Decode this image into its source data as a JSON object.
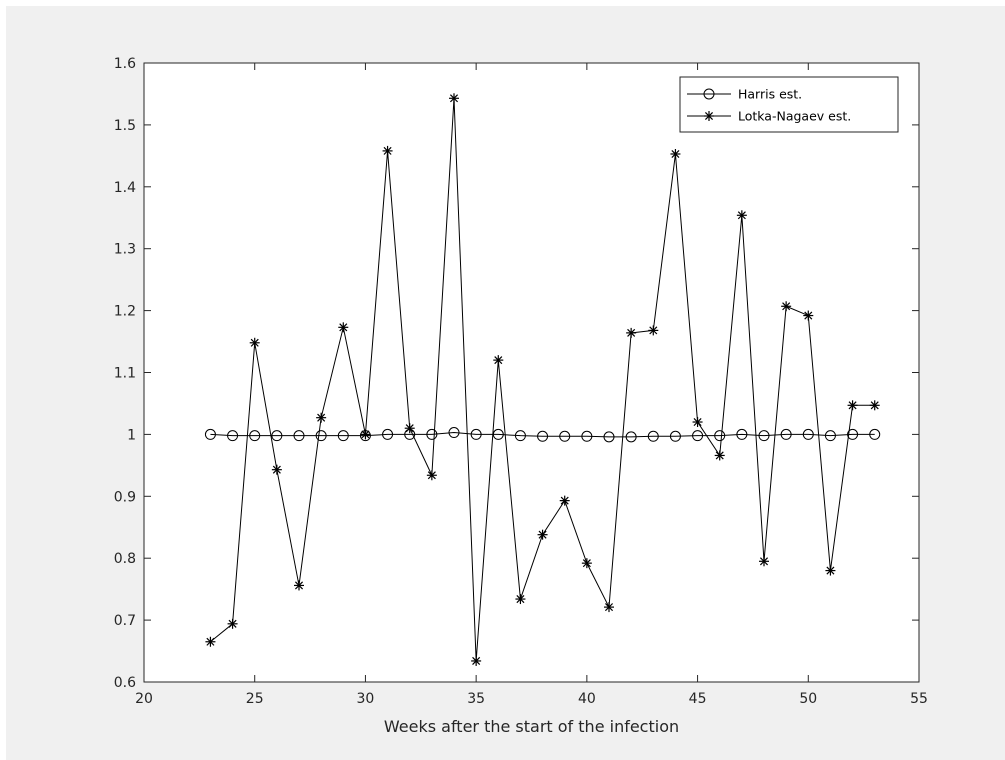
{
  "chart_data": {
    "type": "line",
    "title": "",
    "xlabel": "Weeks after the start of the infection",
    "ylabel": "",
    "xlim": [
      20,
      55
    ],
    "ylim": [
      0.6,
      1.6
    ],
    "xticks": [
      20,
      25,
      30,
      35,
      40,
      45,
      50,
      55
    ],
    "xtick_labels": [
      "20",
      "25",
      "30",
      "35",
      "40",
      "45",
      "50",
      "55"
    ],
    "yticks": [
      0.6,
      0.7,
      0.8,
      0.9,
      1.0,
      1.1,
      1.2,
      1.3,
      1.4,
      1.5,
      1.6
    ],
    "ytick_labels": [
      "0.6",
      "0.7",
      "0.8",
      "0.9",
      "1",
      "1.1",
      "1.2",
      "1.3",
      "1.4",
      "1.5",
      "1.6"
    ],
    "grid": false,
    "legend_position": "top-right",
    "x": [
      23,
      24,
      25,
      26,
      27,
      28,
      29,
      30,
      31,
      32,
      33,
      34,
      35,
      36,
      37,
      38,
      39,
      40,
      41,
      42,
      43,
      44,
      45,
      46,
      47,
      48,
      49,
      50,
      51,
      52,
      53
    ],
    "series": [
      {
        "name": "Harris est.",
        "marker": "circle",
        "color": "#000000",
        "values": [
          1.0,
          0.998,
          0.998,
          0.998,
          0.998,
          0.998,
          0.998,
          0.998,
          1.0,
          1.0,
          1.0,
          1.003,
          1.0,
          1.0,
          0.998,
          0.997,
          0.997,
          0.997,
          0.996,
          0.996,
          0.997,
          0.997,
          0.998,
          0.998,
          1.0,
          0.998,
          1.0,
          1.0,
          0.998,
          1.0,
          1.0
        ]
      },
      {
        "name": "Lotka-Nagaev est.",
        "marker": "star",
        "color": "#000000",
        "values": [
          0.665,
          0.694,
          1.148,
          0.943,
          0.756,
          1.027,
          1.173,
          1.0,
          1.458,
          1.01,
          0.934,
          1.543,
          0.634,
          1.12,
          0.734,
          0.838,
          0.893,
          0.792,
          0.721,
          1.164,
          1.168,
          1.453,
          1.02,
          0.966,
          1.354,
          0.795,
          1.207,
          1.192,
          0.78,
          1.047,
          1.047
        ]
      }
    ]
  }
}
